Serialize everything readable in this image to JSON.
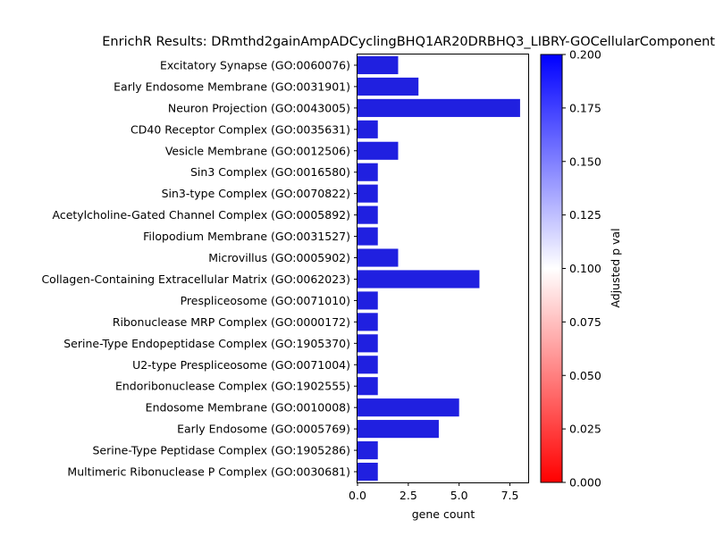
{
  "chart_data": {
    "type": "bar",
    "orientation": "horizontal",
    "title": "EnrichR Results: DRmthd2gainAmpADCyclingBHQ1AR20DRBHQ3_LIBRY-GOCellularComponent",
    "xlabel": "gene count",
    "ylabel": "",
    "xlim": [
      0,
      8.4
    ],
    "xticks": [
      "0.0",
      "2.5",
      "5.0",
      "7.5"
    ],
    "xtick_values": [
      0,
      2.5,
      5.0,
      7.5
    ],
    "bar_color": "#2020e0",
    "categories": [
      "Excitatory Synapse (GO:0060076)",
      "Early Endosome Membrane (GO:0031901)",
      "Neuron Projection (GO:0043005)",
      "CD40 Receptor Complex (GO:0035631)",
      "Vesicle Membrane (GO:0012506)",
      "Sin3 Complex (GO:0016580)",
      "Sin3-type Complex (GO:0070822)",
      "Acetylcholine-Gated Channel Complex (GO:0005892)",
      "Filopodium Membrane (GO:0031527)",
      "Microvillus (GO:0005902)",
      "Collagen-Containing Extracellular Matrix (GO:0062023)",
      "Prespliceosome (GO:0071010)",
      "Ribonuclease MRP Complex (GO:0000172)",
      "Serine-Type Endopeptidase Complex (GO:1905370)",
      "U2-type Prespliceosome (GO:0071004)",
      "Endoribonuclease Complex (GO:1902555)",
      "Endosome Membrane (GO:0010008)",
      "Early Endosome (GO:0005769)",
      "Serine-Type Peptidase Complex (GO:1905286)",
      "Multimeric Ribonuclease P Complex (GO:0030681)"
    ],
    "values": [
      2,
      3,
      8,
      1,
      2,
      1,
      1,
      1,
      1,
      2,
      6,
      1,
      1,
      1,
      1,
      1,
      5,
      4,
      1,
      1
    ],
    "colorbar": {
      "label": "Adjusted p val",
      "range": [
        0.0,
        0.2
      ],
      "ticks": [
        "0.000",
        "0.025",
        "0.050",
        "0.075",
        "0.100",
        "0.125",
        "0.150",
        "0.175",
        "0.200"
      ],
      "tick_values": [
        0.0,
        0.025,
        0.05,
        0.075,
        0.1,
        0.125,
        0.15,
        0.175,
        0.2
      ],
      "colors": [
        "#ff0000",
        "#ffffff",
        "#0000ff"
      ]
    }
  }
}
